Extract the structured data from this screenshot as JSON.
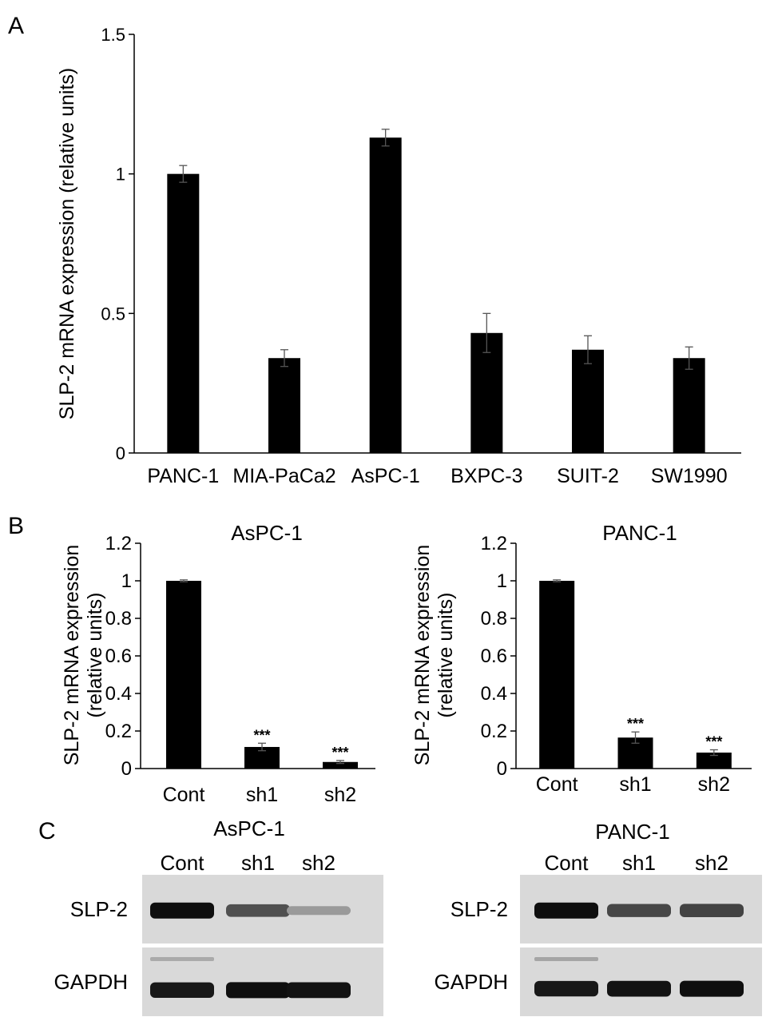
{
  "panel_letters": [
    "A",
    "B",
    "C"
  ],
  "chart_data": [
    {
      "panel": "A",
      "type": "bar",
      "title": "",
      "ylabel": "SLP-2 mRNA expression (relative units)",
      "xlabel": "",
      "ylim": [
        0,
        1.5
      ],
      "yticks": [
        "0",
        "0.5",
        "1",
        "1.5"
      ],
      "categories": [
        "PANC-1",
        "MIA-PaCa2",
        "AsPC-1",
        "BXPC-3",
        "SUIT-2",
        "SW1990"
      ],
      "values": [
        1.0,
        0.34,
        1.13,
        0.43,
        0.37,
        0.34
      ],
      "errors": [
        0.03,
        0.03,
        0.03,
        0.07,
        0.05,
        0.04
      ],
      "annotations": [
        "",
        "",
        "",
        "",
        "",
        ""
      ]
    },
    {
      "panel": "B",
      "type": "bar",
      "title": "AsPC-1",
      "ylabel_lines": [
        "SLP-2 mRNA expression",
        "(relative units)"
      ],
      "xlabel": "",
      "ylim": [
        0,
        1.2
      ],
      "yticks": [
        "0",
        "0.2",
        "0.4",
        "0.6",
        "0.8",
        "1",
        "1.2"
      ],
      "categories": [
        "Cont",
        "sh1",
        "sh2"
      ],
      "values": [
        1.0,
        0.115,
        0.035
      ],
      "errors": [
        0.005,
        0.02,
        0.008
      ],
      "annotations": [
        "",
        "***",
        "***"
      ]
    },
    {
      "panel": "B",
      "type": "bar",
      "title": "PANC-1",
      "ylabel_lines": [
        "SLP-2 mRNA expression",
        "(relative units)"
      ],
      "xlabel": "",
      "ylim": [
        0,
        1.2
      ],
      "yticks": [
        "0",
        "0.2",
        "0.4",
        "0.6",
        "0.8",
        "1",
        "1.2"
      ],
      "categories": [
        "Cont",
        "sh1",
        "sh2"
      ],
      "values": [
        1.0,
        0.165,
        0.085
      ],
      "errors": [
        0.005,
        0.03,
        0.015
      ],
      "annotations": [
        "",
        "***",
        "***"
      ]
    }
  ],
  "blots": [
    {
      "title": "AsPC-1",
      "lanes": [
        "Cont",
        "sh1",
        "sh2"
      ],
      "rows": [
        {
          "label": "SLP-2",
          "intensity": [
            1.0,
            0.65,
            0.25
          ],
          "faint_upper": [
            0,
            0,
            0
          ]
        },
        {
          "label": "GAPDH",
          "intensity": [
            0.95,
            1.0,
            0.98
          ],
          "faint_upper": [
            0.4,
            0,
            0
          ]
        }
      ]
    },
    {
      "title": "PANC-1",
      "lanes": [
        "Cont",
        "sh1",
        "sh2"
      ],
      "rows": [
        {
          "label": "SLP-2",
          "intensity": [
            1.0,
            0.7,
            0.72
          ],
          "faint_upper": [
            0,
            0,
            0
          ]
        },
        {
          "label": "GAPDH",
          "intensity": [
            0.95,
            0.98,
            1.0
          ],
          "faint_upper": [
            0.45,
            0,
            0
          ]
        }
      ]
    }
  ]
}
